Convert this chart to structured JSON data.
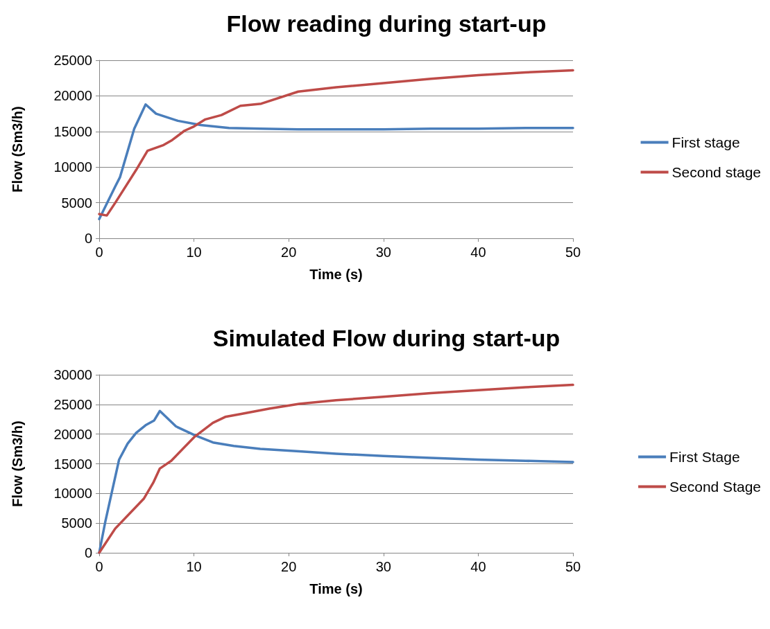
{
  "chart_data": [
    {
      "type": "line",
      "title": "Flow reading during start-up",
      "xlabel": "Time (s)",
      "ylabel": "Flow (Sm3/h)",
      "xlim": [
        0,
        50
      ],
      "xticks": [
        0,
        10,
        20,
        30,
        40,
        50
      ],
      "ylim": [
        0,
        25000
      ],
      "yticks": [
        0,
        5000,
        10000,
        15000,
        20000,
        25000
      ],
      "grid": "y",
      "legend": "right",
      "marker": "none",
      "line_style": "solid",
      "series": [
        {
          "name": "First stage",
          "color": "#4a7ebb",
          "x": [
            0,
            1.7,
            2.2,
            3.7,
            4.9,
            6.0,
            8.3,
            10.7,
            13.7,
            17,
            21,
            25,
            30,
            35,
            40,
            45,
            50
          ],
          "values": [
            2700,
            7300,
            8600,
            15400,
            18800,
            17500,
            16500,
            15900,
            15500,
            15400,
            15300,
            15300,
            15300,
            15400,
            15400,
            15500,
            15500
          ]
        },
        {
          "name": "Second stage",
          "color": "#be4b48",
          "x": [
            0,
            0.8,
            1.7,
            3.9,
            5.1,
            6.8,
            7.7,
            9.0,
            10.0,
            11.2,
            12.9,
            14.9,
            17.1,
            21.0,
            25,
            30,
            35,
            40,
            45,
            50
          ],
          "values": [
            3400,
            3200,
            5000,
            9600,
            12300,
            13100,
            13800,
            15100,
            15700,
            16700,
            17300,
            18600,
            18900,
            20600,
            21200,
            21800,
            22400,
            22900,
            23300,
            23600
          ]
        }
      ]
    },
    {
      "type": "line",
      "title": "Simulated Flow during start-up",
      "xlabel": "Time (s)",
      "ylabel": "Flow (Sm3/h)",
      "xlim": [
        0,
        50
      ],
      "xticks": [
        0,
        10,
        20,
        30,
        40,
        50
      ],
      "ylim": [
        0,
        30000
      ],
      "yticks": [
        0,
        5000,
        10000,
        15000,
        20000,
        25000,
        30000
      ],
      "grid": "y",
      "legend": "right",
      "marker": "none",
      "line_style": "solid",
      "series": [
        {
          "name": "First Stage",
          "color": "#4a7ebb",
          "x": [
            0,
            0.64,
            1.4,
            2.1,
            3.0,
            3.9,
            4.9,
            5.8,
            6.4,
            8.1,
            10.1,
            12.0,
            14.2,
            17,
            21.1,
            25,
            30,
            35,
            40,
            45,
            50
          ],
          "values": [
            0,
            5200,
            10700,
            15700,
            18400,
            20200,
            21500,
            22300,
            23900,
            21300,
            19800,
            18600,
            18000,
            17500,
            17100,
            16700,
            16300,
            16000,
            15700,
            15500,
            15300
          ]
        },
        {
          "name": "Second Stage",
          "color": "#be4b48",
          "x": [
            0,
            1.7,
            4.7,
            5.7,
            6.4,
            7.6,
            10.1,
            12.0,
            13.3,
            15.0,
            18,
            21.1,
            25,
            30,
            35,
            40,
            45,
            50
          ],
          "values": [
            0,
            4100,
            9100,
            11800,
            14200,
            15500,
            19600,
            21900,
            22900,
            23400,
            24300,
            25100,
            25700,
            26300,
            26900,
            27400,
            27900,
            28300
          ]
        }
      ]
    }
  ]
}
